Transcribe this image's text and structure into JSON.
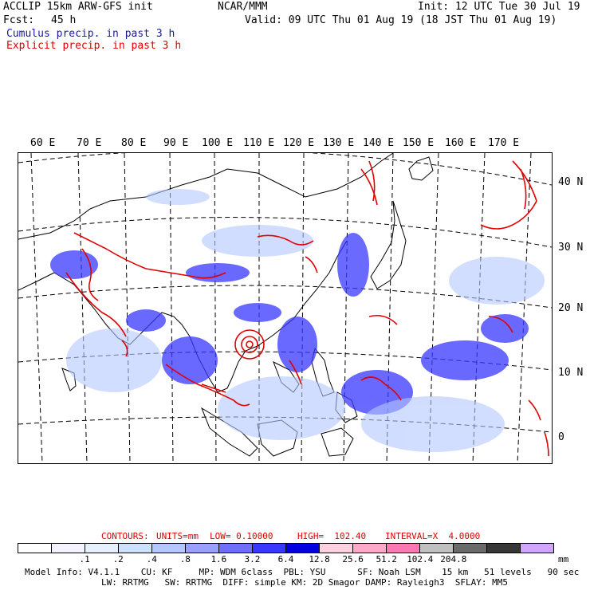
{
  "header": {
    "model_title": "ACCLIP 15km ARW-GFS init",
    "center": "NCAR/MMM",
    "init": "Init: 12 UTC Tue 30 Jul 19",
    "fcst_label": "Fcst:",
    "fcst_value": "45 h",
    "valid": "Valid: 09 UTC Thu 01 Aug 19 (18 JST Thu 01 Aug 19)",
    "cumulus_legend": "Cumulus precip. in past 3 h",
    "explicit_legend": "Explicit precip. in past 3 h"
  },
  "map": {
    "lon_labels": [
      "60 E",
      "70 E",
      "80 E",
      "90 E",
      "100 E",
      "110 E",
      "120 E",
      "130 E",
      "140 E",
      "150 E",
      "160 E",
      "170 E"
    ],
    "lat_labels": [
      "40 N",
      "30 N",
      "20 N",
      "10 N",
      "0"
    ]
  },
  "contours": {
    "text_contours": "CONTOURS:",
    "text_units": "UNITS=mm",
    "text_low": "LOW= 0.10000",
    "text_high": "HIGH=  102.40",
    "text_interval": "INTERVAL=X  4.0000"
  },
  "colorbar": {
    "colors": [
      "#ffffff",
      "#f4f4ff",
      "#e6f0ff",
      "#cce0ff",
      "#b4c8ff",
      "#9aa0ff",
      "#6e6eff",
      "#3838ff",
      "#0000e0",
      "#ffd0e0",
      "#ffa8c8",
      "#ff78b4",
      "#c0c0c0",
      "#6a6a6a",
      "#383838",
      "#d2a6ff"
    ],
    "labels": [
      ".1",
      ".2",
      ".4",
      ".8",
      "1.6",
      "3.2",
      "6.4",
      "12.8",
      "25.6",
      "51.2",
      "102.4",
      "204.8"
    ],
    "unit": "mm"
  },
  "footer": {
    "line1": "Model Info: V4.1.1    CU: KF     MP: WDM 6class  PBL: YSU      SF: Noah LSM    15 km   51 levels   90 sec",
    "line2": "LW: RRTMG   SW: RRTMG  DIFF: simple KM: 2D Smagor DAMP: Rayleigh3  SFLAY: MM5"
  }
}
